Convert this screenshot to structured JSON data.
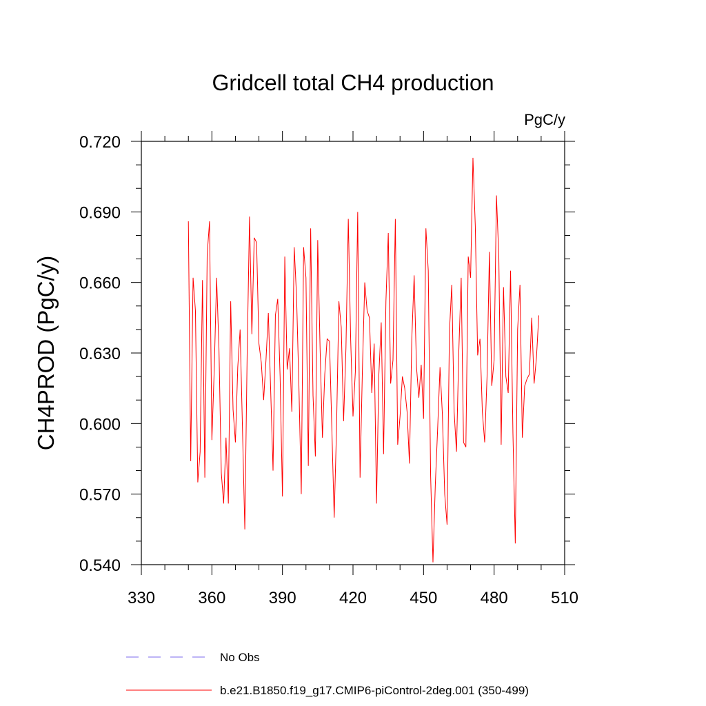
{
  "chart_data": {
    "type": "line",
    "title": "Gridcell total CH4 production",
    "units": "PgC/y",
    "xlabel": "",
    "ylabel": "CH4PROD  (PgC/y)",
    "xlim": [
      330,
      510
    ],
    "ylim": [
      0.54,
      0.72
    ],
    "xticks": [
      "330",
      "360",
      "390",
      "420",
      "450",
      "480",
      "510"
    ],
    "yticks": [
      "0.540",
      "0.570",
      "0.600",
      "0.630",
      "0.660",
      "0.690",
      "0.720"
    ],
    "series": [
      {
        "name": "b.e21.B1850.f19_g17.CMIP6-piControl-2deg.001 (350-499)",
        "color": "#ff0000",
        "x_start": 350,
        "x_step": 1,
        "values": [
          0.686,
          0.584,
          0.662,
          0.648,
          0.575,
          0.588,
          0.661,
          0.577,
          0.672,
          0.686,
          0.593,
          0.623,
          0.662,
          0.632,
          0.579,
          0.566,
          0.594,
          0.566,
          0.652,
          0.606,
          0.592,
          0.624,
          0.64,
          0.598,
          0.555,
          0.63,
          0.688,
          0.638,
          0.679,
          0.677,
          0.634,
          0.626,
          0.61,
          0.627,
          0.647,
          0.614,
          0.58,
          0.646,
          0.653,
          0.62,
          0.569,
          0.671,
          0.623,
          0.632,
          0.605,
          0.675,
          0.654,
          0.616,
          0.57,
          0.675,
          0.662,
          0.582,
          0.683,
          0.612,
          0.586,
          0.678,
          0.632,
          0.594,
          0.621,
          0.636,
          0.635,
          0.598,
          0.56,
          0.598,
          0.652,
          0.641,
          0.601,
          0.632,
          0.687,
          0.636,
          0.603,
          0.622,
          0.69,
          0.577,
          0.623,
          0.66,
          0.648,
          0.645,
          0.613,
          0.634,
          0.566,
          0.621,
          0.643,
          0.587,
          0.652,
          0.681,
          0.617,
          0.627,
          0.687,
          0.591,
          0.603,
          0.62,
          0.615,
          0.605,
          0.583,
          0.636,
          0.663,
          0.624,
          0.611,
          0.625,
          0.602,
          0.683,
          0.665,
          0.578,
          0.541,
          0.574,
          0.598,
          0.624,
          0.604,
          0.57,
          0.557,
          0.639,
          0.659,
          0.605,
          0.588,
          0.631,
          0.662,
          0.592,
          0.59,
          0.671,
          0.662,
          0.713,
          0.684,
          0.629,
          0.636,
          0.605,
          0.592,
          0.62,
          0.673,
          0.616,
          0.627,
          0.697,
          0.671,
          0.591,
          0.658,
          0.62,
          0.613,
          0.665,
          0.596,
          0.549,
          0.64,
          0.659,
          0.594,
          0.616,
          0.619,
          0.621,
          0.645,
          0.617,
          0.628,
          0.646
        ]
      }
    ],
    "legend": [
      {
        "label": "No Obs",
        "color": "#7b68ee",
        "style": "dashed"
      },
      {
        "label": "b.e21.B1850.f19_g17.CMIP6-piControl-2deg.001 (350-499)",
        "color": "#ff0000",
        "style": "solid"
      }
    ]
  }
}
